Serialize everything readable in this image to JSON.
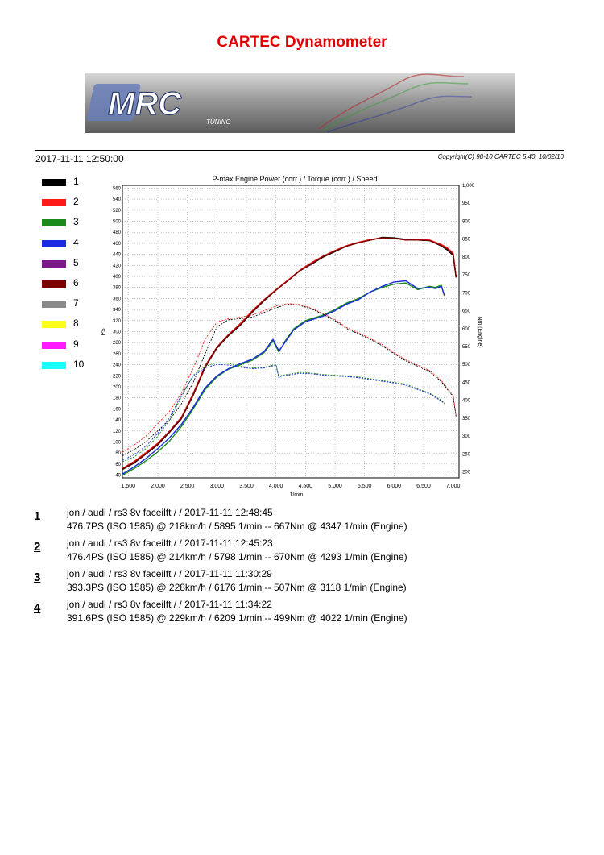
{
  "page_title": "CARTEC Dynamometer",
  "banner": {
    "logo_text": "MRC",
    "logo_subtext": "TUNING"
  },
  "date": "2017-11-11 12:50:00",
  "copyright": "Copyright(C) 98-10 CARTEC 5.40, 10/02/10",
  "legend": [
    {
      "label": "1",
      "color": "#000000"
    },
    {
      "label": "2",
      "color": "#ff1a1a"
    },
    {
      "label": "3",
      "color": "#1a8a1a"
    },
    {
      "label": "4",
      "color": "#1a2ae0"
    },
    {
      "label": "5",
      "color": "#7a1a8a"
    },
    {
      "label": "6",
      "color": "#7a0000"
    },
    {
      "label": "7",
      "color": "#8a8a8a"
    },
    {
      "label": "8",
      "color": "#ffff1a"
    },
    {
      "label": "9",
      "color": "#ff1aff"
    },
    {
      "label": "10",
      "color": "#1affff"
    }
  ],
  "chart_data": {
    "type": "line",
    "title": "P-max Engine Power (corr.) / Torque (corr.) / Speed",
    "xlabel": "1/min",
    "ylabel": "PS",
    "y2label": "Nm (Engine)",
    "xlim": [
      1400,
      7100
    ],
    "ylim": [
      35,
      565
    ],
    "y2lim": [
      183.3,
      1000
    ],
    "x_ticks": [
      1500,
      2000,
      2500,
      3000,
      3500,
      4000,
      4500,
      5000,
      5500,
      6000,
      6500,
      7000
    ],
    "x_tick_labels": [
      "1,500",
      "2,000",
      "2,500",
      "3,000",
      "3,500",
      "4,000",
      "4,500",
      "5,000",
      "5,500",
      "6,000",
      "6,500",
      "7,000"
    ],
    "y_ticks": [
      40,
      60,
      80,
      100,
      120,
      140,
      160,
      180,
      200,
      220,
      240,
      260,
      280,
      300,
      320,
      340,
      360,
      380,
      400,
      420,
      440,
      460,
      480,
      500,
      520,
      540,
      560
    ],
    "y2_ticks": [
      200,
      250,
      300,
      350,
      400,
      450,
      500,
      550,
      600,
      650,
      700,
      750,
      800,
      850,
      900,
      950
    ],
    "y2_top_tick_label": "1,000",
    "grid": true,
    "series": [
      {
        "name": "1",
        "color": "#000000",
        "kind": "power",
        "x": [
          1400,
          1600,
          1800,
          2000,
          2200,
          2400,
          2600,
          2800,
          3000,
          3200,
          3400,
          3600,
          3800,
          4000,
          4200,
          4400,
          4600,
          4800,
          5000,
          5200,
          5400,
          5600,
          5800,
          6000,
          6200,
          6400,
          6600,
          6800,
          6900,
          7000,
          7050
        ],
        "y": [
          50,
          62,
          78,
          95,
          118,
          142,
          185,
          235,
          270,
          293,
          312,
          335,
          356,
          375,
          392,
          410,
          422,
          435,
          445,
          455,
          461,
          466,
          471,
          470,
          467,
          466,
          465,
          455,
          448,
          438,
          398
        ]
      },
      {
        "name": "2",
        "color": "#ff1a1a",
        "kind": "power",
        "x": [
          1400,
          1600,
          1800,
          2000,
          2200,
          2400,
          2600,
          2800,
          3000,
          3200,
          3400,
          3600,
          3800,
          4000,
          4200,
          4400,
          4600,
          4800,
          5000,
          5200,
          5400,
          5600,
          5800,
          6000,
          6200,
          6400,
          6600,
          6800,
          6900,
          7000,
          7050
        ],
        "y": [
          52,
          65,
          81,
          98,
          120,
          145,
          188,
          238,
          272,
          295,
          315,
          338,
          358,
          376,
          393,
          411,
          425,
          437,
          447,
          456,
          462,
          467,
          470,
          469,
          466,
          467,
          466,
          458,
          452,
          442,
          400
        ]
      },
      {
        "name": "6",
        "color": "#7a0000",
        "kind": "power",
        "x": [
          1400,
          1600,
          1800,
          2000,
          2200,
          2400,
          2600,
          2800,
          3000,
          3200,
          3400,
          3600,
          3800,
          4000,
          4200,
          4400,
          4600,
          4800,
          5000,
          5200,
          5400,
          5600,
          5800,
          6000,
          6200,
          6400,
          6600,
          6800,
          6900,
          7000,
          7050
        ],
        "y": [
          51,
          63,
          79,
          96,
          119,
          143,
          186,
          236,
          271,
          294,
          313,
          336,
          357,
          375,
          392,
          410,
          423,
          436,
          446,
          455,
          461,
          466,
          470,
          469,
          466,
          466,
          465,
          456,
          450,
          440,
          399
        ]
      },
      {
        "name": "3",
        "color": "#1a8a1a",
        "kind": "power",
        "x": [
          1400,
          1600,
          1800,
          2000,
          2200,
          2400,
          2600,
          2800,
          3000,
          3200,
          3400,
          3600,
          3800,
          3950,
          4050,
          4150,
          4300,
          4500,
          4800,
          5000,
          5200,
          5400,
          5600,
          5800,
          6000,
          6200,
          6400,
          6600,
          6700,
          6800,
          6850
        ],
        "y": [
          40,
          52,
          66,
          82,
          102,
          128,
          160,
          195,
          218,
          232,
          240,
          248,
          262,
          283,
          263,
          282,
          305,
          320,
          330,
          340,
          352,
          360,
          372,
          380,
          386,
          388,
          376,
          382,
          380,
          384,
          365
        ]
      },
      {
        "name": "4",
        "color": "#1a2ae0",
        "kind": "power",
        "x": [
          1400,
          1600,
          1800,
          2000,
          2200,
          2400,
          2600,
          2800,
          3000,
          3200,
          3400,
          3600,
          3800,
          3950,
          4050,
          4150,
          4300,
          4500,
          4800,
          5000,
          5200,
          5400,
          5600,
          5800,
          6000,
          6200,
          6400,
          6600,
          6700,
          6800,
          6850
        ],
        "y": [
          42,
          55,
          70,
          88,
          108,
          132,
          163,
          198,
          220,
          233,
          242,
          250,
          264,
          286,
          265,
          280,
          303,
          318,
          328,
          338,
          350,
          358,
          372,
          382,
          390,
          392,
          378,
          380,
          378,
          382,
          367
        ]
      },
      {
        "name": "1",
        "color": "#000000",
        "kind": "torque",
        "x": [
          1400,
          1600,
          1800,
          2000,
          2200,
          2400,
          2600,
          2800,
          3000,
          3200,
          3400,
          3600,
          3800,
          4000,
          4200,
          4400,
          4600,
          4800,
          5000,
          5200,
          5400,
          5600,
          5800,
          6000,
          6200,
          6400,
          6600,
          6800,
          7000,
          7050
        ],
        "y": [
          245,
          262,
          285,
          315,
          345,
          390,
          450,
          530,
          605,
          625,
          628,
          632,
          645,
          658,
          668,
          665,
          655,
          640,
          622,
          600,
          585,
          570,
          552,
          530,
          510,
          495,
          480,
          452,
          410,
          355
        ]
      },
      {
        "name": "2",
        "color": "#ff1a1a",
        "kind": "torque",
        "x": [
          1400,
          1600,
          1800,
          2000,
          2200,
          2400,
          2600,
          2800,
          3000,
          3200,
          3400,
          3600,
          3800,
          4000,
          4200,
          4400,
          4600,
          4800,
          5000,
          5200,
          5400,
          5600,
          5800,
          6000,
          6200,
          6400,
          6600,
          6800,
          7000,
          7050
        ],
        "y": [
          255,
          275,
          300,
          335,
          370,
          420,
          490,
          570,
          618,
          628,
          632,
          638,
          650,
          663,
          670,
          667,
          657,
          642,
          625,
          603,
          588,
          572,
          555,
          533,
          513,
          498,
          483,
          455,
          413,
          357
        ]
      },
      {
        "name": "3",
        "color": "#1a8a1a",
        "kind": "torque",
        "x": [
          1400,
          1600,
          1800,
          2000,
          2200,
          2400,
          2600,
          2800,
          3000,
          3200,
          3400,
          3600,
          3800,
          4000,
          4050,
          4100,
          4200,
          4400,
          4600,
          4800,
          5000,
          5200,
          5400,
          5600,
          5800,
          6000,
          6200,
          6400,
          6600,
          6800,
          6850
        ],
        "y": [
          228,
          242,
          265,
          300,
          345,
          410,
          470,
          495,
          505,
          503,
          495,
          490,
          492,
          500,
          465,
          470,
          472,
          478,
          476,
          472,
          470,
          468,
          465,
          460,
          455,
          450,
          445,
          432,
          420,
          400,
          392
        ]
      },
      {
        "name": "4",
        "color": "#1a2ae0",
        "kind": "torque",
        "x": [
          1400,
          1600,
          1800,
          2000,
          2200,
          2400,
          2600,
          2800,
          3000,
          3200,
          3400,
          3600,
          3800,
          4000,
          4050,
          4100,
          4200,
          4400,
          4600,
          4800,
          5000,
          5200,
          5400,
          5600,
          5800,
          6000,
          6200,
          6400,
          6600,
          6800,
          6850
        ],
        "y": [
          232,
          248,
          272,
          308,
          352,
          415,
          468,
          490,
          500,
          498,
          492,
          488,
          490,
          498,
          462,
          468,
          470,
          475,
          474,
          470,
          468,
          466,
          463,
          458,
          453,
          448,
          442,
          430,
          418,
          398,
          390
        ]
      }
    ]
  },
  "runs": [
    {
      "number": "1",
      "line1": "jon / audi / rs3 8v faceilft /  / 2017-11-11 12:48:45",
      "line2": "476.7PS (ISO 1585) @ 218km/h / 5895 1/min -- 667Nm @ 4347 1/min (Engine)"
    },
    {
      "number": "2",
      "line1": "jon / audi / rs3 8v faceilft /  / 2017-11-11 12:45:23",
      "line2": "476.4PS (ISO 1585) @ 214km/h / 5798 1/min -- 670Nm @ 4293 1/min (Engine)"
    },
    {
      "number": "3",
      "line1": "jon / audi / rs3 8v faceilft /  / 2017-11-11 11:30:29",
      "line2": "393.3PS (ISO 1585) @ 228km/h / 6176 1/min -- 507Nm @ 3118 1/min (Engine)"
    },
    {
      "number": "4",
      "line1": "jon / audi / rs3 8v faceilft /  / 2017-11-11 11:34:22",
      "line2": "391.6PS (ISO 1585) @ 229km/h / 6209 1/min -- 499Nm @ 4022 1/min (Engine)"
    }
  ]
}
